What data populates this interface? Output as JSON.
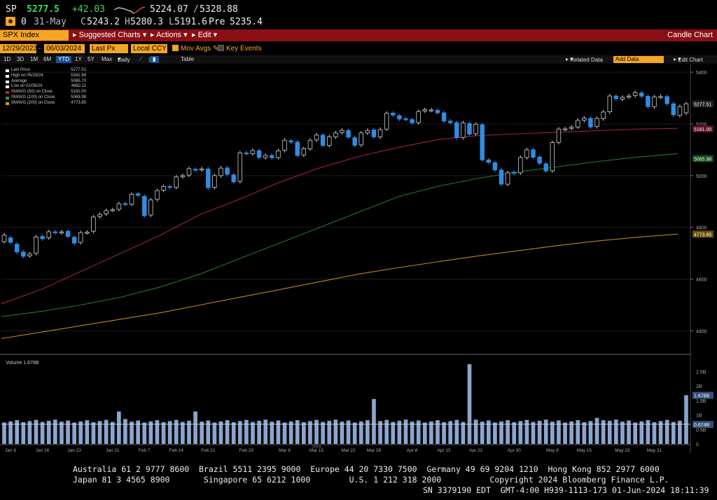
{
  "quote": {
    "ticker": "SP",
    "last": "5277.5",
    "change": "+42.03",
    "range_low": "5224.07",
    "range_sep": "/",
    "range_high": "5328.88",
    "badge": "0",
    "date_label": "31-May",
    "open": "5243.2",
    "high": "5280.3",
    "low": "5191.6",
    "pre_label": "Pre",
    "pre": "5235.4",
    "open_prefix": "C",
    "high_prefix": "H",
    "low_prefix": "L"
  },
  "toolbar": {
    "security": "SPX Index",
    "suggested": "Suggested Charts",
    "actions": "Actions",
    "edit": "Edit",
    "chart_type": "Candle Chart"
  },
  "daterow": {
    "start": "12/29/2023",
    "end": "06/03/2024",
    "field": "Last Px",
    "currency": "Local CCY",
    "mov_avgs": "Mov Avgs",
    "key_events": "Key Events"
  },
  "periods": {
    "items": [
      "1D",
      "3D",
      "1M",
      "6M",
      "YTD",
      "1Y",
      "5Y",
      "Max",
      "Daily"
    ],
    "active": "YTD",
    "table": "Table",
    "related": "Related Data",
    "add_data": "Add Data",
    "edit_chart": "Edit Chart"
  },
  "legend": [
    {
      "name": "Last Price",
      "value": "5277.51",
      "color": "#ffffff"
    },
    {
      "name": "High on 05/23/24",
      "value": "5341.88",
      "color": "#ffffff"
    },
    {
      "name": "Average",
      "value": "5065.70",
      "color": "#ffffff"
    },
    {
      "name": "Low on 01/05/24",
      "value": "4682.11",
      "color": "#ffffff"
    },
    {
      "name": "SMAVG (50)  on Close",
      "value": "5181.00",
      "color": "#c2185b"
    },
    {
      "name": "SMAVG (100)  on Close",
      "value": "5065.98",
      "color": "#2e9a3a"
    },
    {
      "name": "SMAVG (200)  on Close",
      "value": "4773.85",
      "color": "#d4a017"
    }
  ],
  "volume_label": "Volume  1.678B",
  "chart_data": {
    "type": "candlestick",
    "xlabel": "",
    "ylabel": "",
    "ylim": [
      4320,
      5430
    ],
    "yticks": [
      4400,
      4600,
      4800,
      5000,
      5200,
      5400
    ],
    "x_tick_labels": [
      "Jan 8",
      "Jan 16",
      "Jan 23",
      "Jan 31",
      "Feb 7",
      "Feb 14",
      "Feb 21",
      "Feb 29",
      "Mar 8",
      "Mar 15",
      "Mar 22",
      "Mar 28",
      "Apr 8",
      "Apr 15",
      "Apr 22",
      "Apr 30",
      "May 8",
      "May 15",
      "May 23",
      "May 31"
    ],
    "x_tick_positions": [
      1,
      6,
      11,
      17,
      22,
      27,
      32,
      38,
      44,
      49,
      54,
      58,
      64,
      69,
      74,
      80,
      86,
      91,
      97,
      102
    ],
    "year_label": "2024",
    "close": [
      4770,
      4742,
      4705,
      4688,
      4697,
      4763,
      4756,
      4783,
      4780,
      4783,
      4765,
      4739,
      4780,
      4781,
      4840,
      4850,
      4865,
      4868,
      4891,
      4890,
      4928,
      4924,
      4845,
      4906,
      4942,
      4958,
      4954,
      4995,
      5000,
      5027,
      5022,
      5026,
      4953,
      5000,
      5029,
      5005,
      4976,
      5088,
      5087,
      5097,
      5070,
      5078,
      5069,
      5096,
      5137,
      5130,
      5078,
      5104,
      5137,
      5157,
      5117,
      5150,
      5165,
      5175,
      5149,
      5117,
      5165,
      5175,
      5150,
      5178,
      5241,
      5234,
      5219,
      5218,
      5204,
      5248,
      5255,
      5254,
      5243,
      5211,
      5205,
      5147,
      5204,
      5160,
      5199,
      5061,
      5051,
      5022,
      4967,
      5011,
      5010,
      5070,
      5100,
      5071,
      5048,
      5018,
      5128,
      5180,
      5181,
      5187,
      5214,
      5222,
      5188,
      5221,
      5246,
      5308,
      5297,
      5303,
      5308,
      5321,
      5307,
      5267,
      5304,
      5306,
      5278,
      5235,
      5267,
      5278
    ],
    "open": [
      4745,
      4760,
      4735,
      4705,
      4690,
      4700,
      4765,
      4760,
      4783,
      4780,
      4785,
      4762,
      4742,
      4781,
      4785,
      4842,
      4852,
      4868,
      4870,
      4892,
      4890,
      4930,
      4920,
      4848,
      4908,
      4944,
      4958,
      4955,
      4996,
      5002,
      5025,
      5022,
      5026,
      4955,
      5000,
      5030,
      5003,
      4978,
      5088,
      5085,
      5097,
      5070,
      5078,
      5070,
      5098,
      5135,
      5130,
      5080,
      5104,
      5138,
      5157,
      5117,
      5150,
      5167,
      5175,
      5147,
      5119,
      5165,
      5177,
      5150,
      5180,
      5242,
      5232,
      5220,
      5217,
      5205,
      5250,
      5253,
      5253,
      5243,
      5211,
      5205,
      5147,
      5202,
      5162,
      5197,
      5061,
      5050,
      5022,
      4967,
      5013,
      5011,
      5070,
      5100,
      5072,
      5046,
      5019,
      5129,
      5180,
      5183,
      5188,
      5214,
      5222,
      5190,
      5220,
      5247,
      5308,
      5296,
      5304,
      5310,
      5320,
      5307,
      5267,
      5304,
      5306,
      5278,
      5233,
      5243
    ],
    "moving_averages": {
      "SMAVG (50)": {
        "start": 4505,
        "end": 5183
      },
      "SMAVG (100)": {
        "start": 4455,
        "end": 5085
      },
      "SMAVG (200)": {
        "start": 4370,
        "end": 4774
      }
    },
    "volume": {
      "label": "Volume",
      "last": "1.678B",
      "yticks": [
        "0",
        "0.5B",
        "1B",
        "1.5B",
        "2B",
        "2.5B"
      ],
      "average": "0.674B"
    }
  },
  "footer": {
    "line1": "Australia 61 2 9777 8600  Brazil 5511 2395 9000  Europe 44 20 7330 7500  Germany 49 69 9204 1210  Hong Kong 852 2977 6000",
    "line2": "Japan 81 3 4565 8900       Singapore 65 6212 1000        U.S. 1 212 318 2000          Copyright 2024 Bloomberg Finance L.P.",
    "line3": "SN 3379190 EDT  GMT-4:00 H939-1113-173 01-Jun-2024 18:11:39"
  }
}
